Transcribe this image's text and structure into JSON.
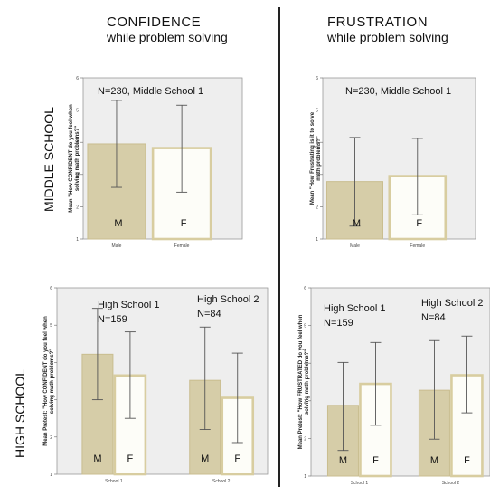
{
  "columns": {
    "confidence": {
      "line1": "CONFIDENCE",
      "line2": "while problem solving"
    },
    "frustration": {
      "line1": "FRUSTRATION",
      "line2": "while problem solving"
    }
  },
  "rows": {
    "middle": "MIDDLE SCHOOL",
    "high": "HIGH SCHOOL"
  },
  "colors": {
    "male_bar": "#d6cda8",
    "female_bar": "#fdfdf8",
    "female_border": "#d8cda0",
    "plot_bg": "#eeeeee"
  },
  "chart_data": [
    {
      "id": "ms-confidence",
      "type": "bar",
      "title": "",
      "annotations": [
        "N=230,  Middle School 1"
      ],
      "ylabel": [
        "Mean \"How CONFIDENT do you feel when",
        "solving math problems?\""
      ],
      "ylim": [
        1,
        6
      ],
      "yticks": [
        "1",
        "2",
        "3",
        "4",
        "5",
        "6"
      ],
      "categories": [
        "Male",
        "Female"
      ],
      "series": [
        {
          "values": [
            3.95,
            3.82
          ],
          "err_low": [
            2.6,
            2.45
          ],
          "err_high": [
            5.3,
            5.15
          ],
          "bar_labels": [
            "M",
            "F"
          ]
        }
      ]
    },
    {
      "id": "ms-frustration",
      "type": "bar",
      "title": "",
      "annotations": [
        "N=230,  Middle School 1"
      ],
      "ylabel": [
        "Mean \"How Frustrating is it to solve",
        "math problems?\""
      ],
      "ylim": [
        1,
        6
      ],
      "yticks": [
        "1",
        "2",
        "3",
        "4",
        "5",
        "6"
      ],
      "categories": [
        "Male",
        "Female"
      ],
      "series": [
        {
          "values": [
            2.78,
            2.95
          ],
          "err_low": [
            1.4,
            1.75
          ],
          "err_high": [
            4.15,
            4.12
          ],
          "bar_labels": [
            "M",
            "F"
          ]
        }
      ]
    },
    {
      "id": "hs-confidence",
      "type": "bar",
      "title": "",
      "annotations": [
        "High School 1",
        "N=159",
        "High School 2",
        "N=84"
      ],
      "ylabel": [
        "Mean Pretest: \"How CONFIDENT do you feel when",
        "solving math problems?\""
      ],
      "ylim": [
        1,
        6
      ],
      "yticks": [
        "1",
        "2",
        "3",
        "4",
        "5",
        "6"
      ],
      "categories": [
        "School 1",
        "School 2"
      ],
      "series": [
        {
          "values": [
            4.22,
            3.65
          ],
          "err_low": [
            3.0,
            2.5
          ],
          "err_high": [
            5.45,
            4.82
          ],
          "bar_labels": [
            "M",
            "F"
          ]
        },
        {
          "values": [
            3.52,
            3.05
          ],
          "err_low": [
            2.2,
            1.85
          ],
          "err_high": [
            4.95,
            4.25
          ],
          "bar_labels": [
            "M",
            "F"
          ]
        }
      ]
    },
    {
      "id": "hs-frustration",
      "type": "bar",
      "title": "",
      "annotations": [
        "High School 1",
        "N=159",
        "High School 2",
        "N=84"
      ],
      "ylabel": [
        "Mean Pretest: \"How FRUSTRATED do you feel when",
        "solving math problems?\""
      ],
      "ylim": [
        1,
        6
      ],
      "yticks": [
        "1",
        "2",
        "3",
        "4",
        "5",
        "6"
      ],
      "categories": [
        "School 1",
        "School 2"
      ],
      "series": [
        {
          "values": [
            2.88,
            3.45
          ],
          "err_low": [
            1.68,
            2.35
          ],
          "err_high": [
            4.02,
            4.55
          ],
          "bar_labels": [
            "M",
            "F"
          ]
        },
        {
          "values": [
            3.28,
            3.68
          ],
          "err_low": [
            1.98,
            2.68
          ],
          "err_high": [
            4.6,
            4.72
          ],
          "bar_labels": [
            "M",
            "F"
          ]
        }
      ]
    }
  ]
}
